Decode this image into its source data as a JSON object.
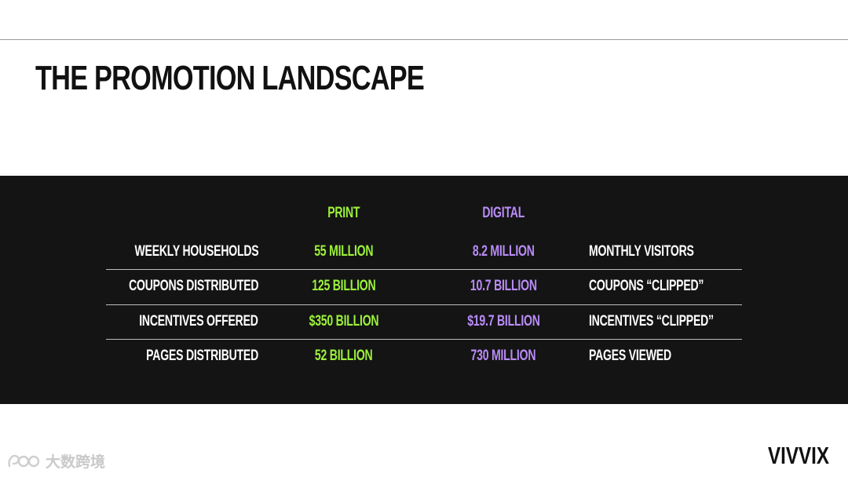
{
  "slide": {
    "title": "THE PROMOTION LANDSCAPE"
  },
  "table": {
    "headers": {
      "print": "PRINT",
      "digital": "DIGITAL"
    },
    "rows": [
      {
        "left_label": "WEEKLY HOUSEHOLDS",
        "print_value": "55 MILLION",
        "digital_value": "8.2 MILLION",
        "right_label": "MONTHLY VISITORS"
      },
      {
        "left_label": "COUPONS DISTRIBUTED",
        "print_value": "125 BILLION",
        "digital_value": "10.7 BILLION",
        "right_label": "COUPONS “CLIPPED”"
      },
      {
        "left_label": "INCENTIVES OFFERED",
        "print_value": "$350 BILLION",
        "digital_value": "$19.7 BILLION",
        "right_label": "INCENTIVES “CLIPPED”"
      },
      {
        "left_label": "PAGES DISTRIBUTED",
        "print_value": "52 BILLION",
        "digital_value": "730 MILLION",
        "right_label": "PAGES VIEWED"
      }
    ]
  },
  "branding": {
    "logo_text": "VIVVIX",
    "watermark_text": "大数跨境",
    "watermark_icon": "watermark-logo-icon"
  },
  "colors": {
    "background": "#ffffff",
    "band": "#141414",
    "print_accent": "#9cf23a",
    "digital_accent": "#b98cf7",
    "rule": "#bdbdbd"
  }
}
